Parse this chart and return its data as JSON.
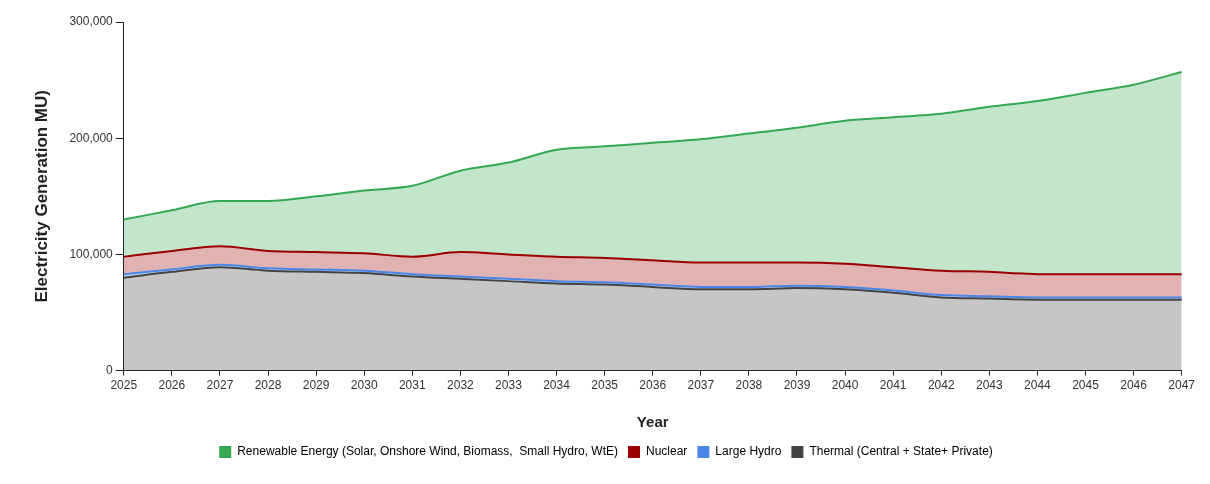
{
  "chart_data": {
    "type": "area",
    "stacked": true,
    "xlabel": "Year",
    "ylabel": "Electricity Generation MU)",
    "categories": [
      "2025",
      "2026",
      "2027",
      "2028",
      "2029",
      "2030",
      "2031",
      "2032",
      "2033",
      "2034",
      "2035",
      "2036",
      "2037",
      "2038",
      "2039",
      "2040",
      "2041",
      "2042",
      "2043",
      "2044",
      "2045",
      "2046",
      "2047"
    ],
    "series": [
      {
        "name": "Thermal (Central + State+ Private)",
        "color": "#434343",
        "values": [
          80000,
          85000,
          89000,
          86000,
          85000,
          84000,
          81000,
          79000,
          77000,
          75000,
          74000,
          72000,
          70000,
          70000,
          71000,
          70000,
          67000,
          63000,
          62000,
          61000,
          61000,
          61000,
          61000
        ]
      },
      {
        "name": "Large Hydro",
        "color": "#4a86e8",
        "values": [
          3000,
          2000,
          2000,
          2000,
          2000,
          2000,
          2000,
          2000,
          2000,
          2000,
          2000,
          2000,
          2000,
          2000,
          2000,
          2000,
          2000,
          2000,
          2000,
          2000,
          2000,
          2000,
          2000
        ]
      },
      {
        "name": "Nuclear",
        "color": "#990000",
        "values": [
          15000,
          16000,
          16000,
          15000,
          15000,
          15000,
          15000,
          21000,
          21000,
          21000,
          21000,
          21000,
          21000,
          21000,
          20000,
          20000,
          20000,
          21000,
          21000,
          20000,
          20000,
          20000,
          20000
        ]
      },
      {
        "name": "Renewable Energy (Solar, Onshore Wind, Biomass,  Small Hydro, WtE)",
        "color": "#34a853",
        "values": [
          32000,
          35000,
          39000,
          43000,
          48000,
          54000,
          61000,
          70000,
          79000,
          92000,
          96000,
          101000,
          106000,
          111000,
          116000,
          123000,
          129000,
          135000,
          142000,
          149000,
          156000,
          163000,
          174000
        ]
      }
    ],
    "ylim": [
      0,
      300000
    ],
    "yticks": [
      0,
      {
        "value": 100000,
        "label": "100,000"
      },
      {
        "value": 200000,
        "label": "200,000"
      },
      {
        "value": 300000,
        "label": "300,000"
      }
    ],
    "grid": false,
    "legend": "bottom"
  }
}
